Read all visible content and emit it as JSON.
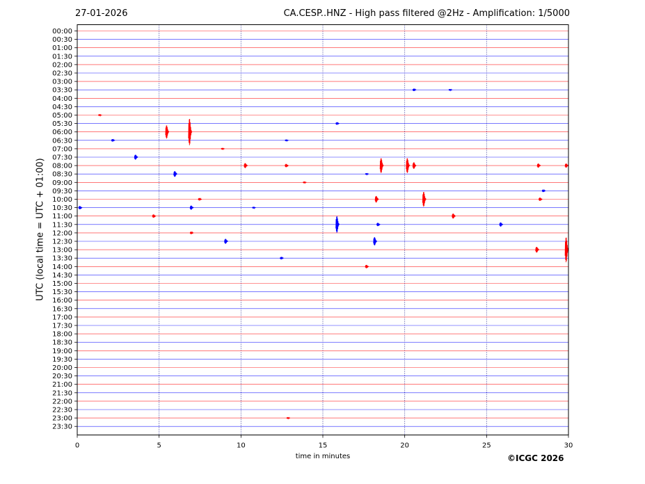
{
  "header": {
    "date": "27-01-2026",
    "title": "CA.CESP..HNZ - High pass filtered @2Hz - Amplification: 1/5000"
  },
  "footer": {
    "copyright": "©ICGC 2026"
  },
  "chart_data": {
    "type": "line",
    "title": "CA.CESP..HNZ - High pass filtered @2Hz - Amplification: 1/5000",
    "xlabel": "time in minutes",
    "ylabel": "UTC (local time = UTC + 01:00)",
    "xlim": [
      0,
      30
    ],
    "x_ticks": [
      0,
      5,
      10,
      15,
      20,
      25,
      30
    ],
    "vertical_gridlines": [
      5,
      10,
      15,
      20,
      25
    ],
    "grid": "vertical dotted",
    "trace_colors": [
      "#ff0000",
      "#0000ff"
    ],
    "rows": [
      "00:00",
      "00:30",
      "01:00",
      "01:30",
      "02:00",
      "02:30",
      "03:00",
      "03:30",
      "04:00",
      "04:30",
      "05:00",
      "05:30",
      "06:00",
      "06:30",
      "07:00",
      "07:30",
      "08:00",
      "08:30",
      "09:00",
      "09:30",
      "10:00",
      "10:30",
      "11:00",
      "11:30",
      "12:00",
      "12:30",
      "13:00",
      "13:30",
      "14:00",
      "14:30",
      "15:00",
      "15:30",
      "16:00",
      "16:30",
      "17:00",
      "17:30",
      "18:00",
      "18:30",
      "19:00",
      "19:30",
      "20:00",
      "20:30",
      "21:00",
      "21:30",
      "22:00",
      "22:30",
      "23:00",
      "23:30"
    ],
    "events": [
      {
        "row": "03:30",
        "minute": 20.6,
        "amplitude": 0.3
      },
      {
        "row": "03:30",
        "minute": 22.8,
        "amplitude": 0.2
      },
      {
        "row": "05:00",
        "minute": 1.4,
        "amplitude": 0.2
      },
      {
        "row": "05:30",
        "minute": 15.9,
        "amplitude": 0.3
      },
      {
        "row": "06:00",
        "minute": 5.5,
        "amplitude": 1.6
      },
      {
        "row": "06:00",
        "minute": 6.9,
        "amplitude": 3.2
      },
      {
        "row": "06:30",
        "minute": 2.2,
        "amplitude": 0.3
      },
      {
        "row": "06:30",
        "minute": 12.8,
        "amplitude": 0.2
      },
      {
        "row": "07:00",
        "minute": 8.9,
        "amplitude": 0.2
      },
      {
        "row": "07:30",
        "minute": 3.6,
        "amplitude": 0.6
      },
      {
        "row": "08:00",
        "minute": 10.3,
        "amplitude": 0.6
      },
      {
        "row": "08:00",
        "minute": 12.8,
        "amplitude": 0.4
      },
      {
        "row": "08:00",
        "minute": 18.6,
        "amplitude": 1.8
      },
      {
        "row": "08:00",
        "minute": 20.2,
        "amplitude": 1.8
      },
      {
        "row": "08:00",
        "minute": 20.6,
        "amplitude": 0.8
      },
      {
        "row": "08:00",
        "minute": 28.2,
        "amplitude": 0.5
      },
      {
        "row": "08:00",
        "minute": 29.9,
        "amplitude": 0.5
      },
      {
        "row": "08:30",
        "minute": 6.0,
        "amplitude": 0.7
      },
      {
        "row": "08:30",
        "minute": 17.7,
        "amplitude": 0.2
      },
      {
        "row": "09:00",
        "minute": 13.9,
        "amplitude": 0.2
      },
      {
        "row": "09:30",
        "minute": 28.5,
        "amplitude": 0.3
      },
      {
        "row": "10:00",
        "minute": 7.5,
        "amplitude": 0.3
      },
      {
        "row": "10:00",
        "minute": 18.3,
        "amplitude": 0.8
      },
      {
        "row": "10:00",
        "minute": 21.2,
        "amplitude": 1.8
      },
      {
        "row": "10:00",
        "minute": 28.3,
        "amplitude": 0.4
      },
      {
        "row": "10:30",
        "minute": 0.2,
        "amplitude": 0.4
      },
      {
        "row": "10:30",
        "minute": 7.0,
        "amplitude": 0.5
      },
      {
        "row": "10:30",
        "minute": 10.8,
        "amplitude": 0.2
      },
      {
        "row": "11:00",
        "minute": 4.7,
        "amplitude": 0.4
      },
      {
        "row": "11:00",
        "minute": 23.0,
        "amplitude": 0.6
      },
      {
        "row": "11:30",
        "minute": 15.9,
        "amplitude": 2.0
      },
      {
        "row": "11:30",
        "minute": 18.4,
        "amplitude": 0.4
      },
      {
        "row": "11:30",
        "minute": 25.9,
        "amplitude": 0.5
      },
      {
        "row": "12:00",
        "minute": 7.0,
        "amplitude": 0.3
      },
      {
        "row": "12:30",
        "minute": 9.1,
        "amplitude": 0.6
      },
      {
        "row": "12:30",
        "minute": 18.2,
        "amplitude": 1.0
      },
      {
        "row": "13:00",
        "minute": 28.1,
        "amplitude": 0.7
      },
      {
        "row": "13:00",
        "minute": 29.9,
        "amplitude": 3.0
      },
      {
        "row": "13:30",
        "minute": 12.5,
        "amplitude": 0.3
      },
      {
        "row": "14:00",
        "minute": 17.7,
        "amplitude": 0.4
      },
      {
        "row": "23:00",
        "minute": 12.9,
        "amplitude": 0.2
      }
    ]
  }
}
